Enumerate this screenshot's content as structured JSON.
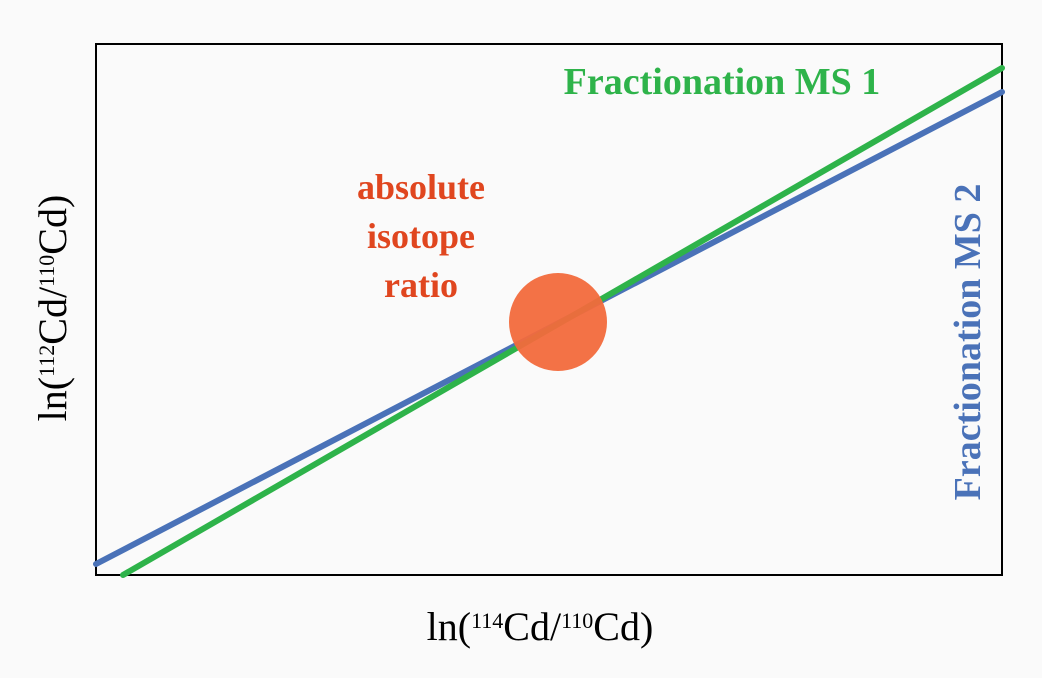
{
  "axes": {
    "x_label": {
      "prefix": "ln(",
      "num_mass": "114",
      "num_elem": "Cd",
      "slash": "/",
      "den_mass": "110",
      "den_elem": "Cd",
      "suffix": ")"
    },
    "y_label": {
      "prefix": "ln(",
      "num_mass": "112",
      "num_elem": "Cd",
      "slash": "/",
      "den_mass": "110",
      "den_elem": "Cd",
      "suffix": ")"
    }
  },
  "lines": {
    "ms1": {
      "label": "Fractionation MS 1",
      "color": "#2eb34a"
    },
    "ms2": {
      "label": "Fractionation MS 2",
      "color": "#4a72b8"
    }
  },
  "intersection": {
    "label_line1": "absolute",
    "label_line2": "isotope",
    "label_line3": "ratio",
    "label_color": "#e0461f",
    "marker_color": "#f26a3c"
  }
}
